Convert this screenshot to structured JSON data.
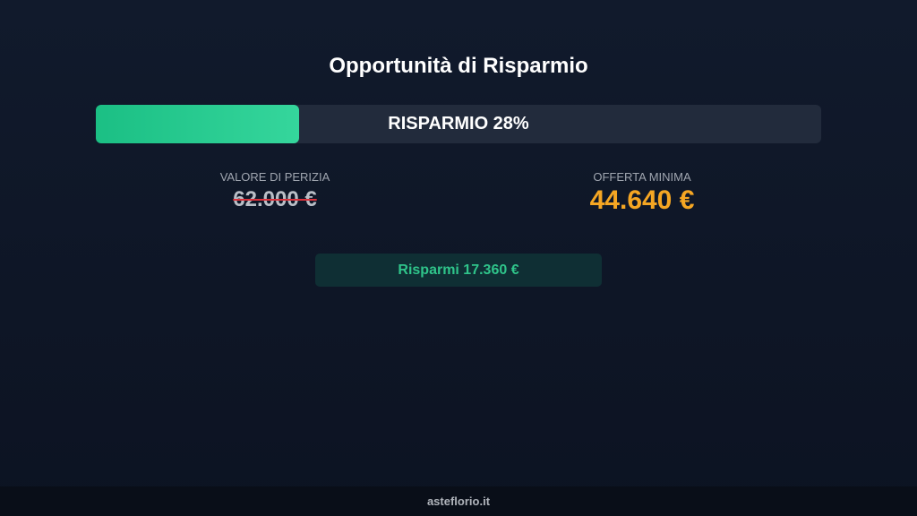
{
  "title": "Opportunità di Risparmio",
  "progress": {
    "label": "RISPARMIO 28%",
    "percent": 28,
    "color": "#1bbf84"
  },
  "appraisal": {
    "label": "VALORE DI PERIZIA",
    "value": "62.000 €"
  },
  "minimum_offer": {
    "label": "OFFERTA MINIMA",
    "value": "44.640 €",
    "color": "#f5a623"
  },
  "savings": {
    "label": "Risparmi 17.360 €"
  },
  "footer": {
    "site": "asteflorio.it"
  }
}
